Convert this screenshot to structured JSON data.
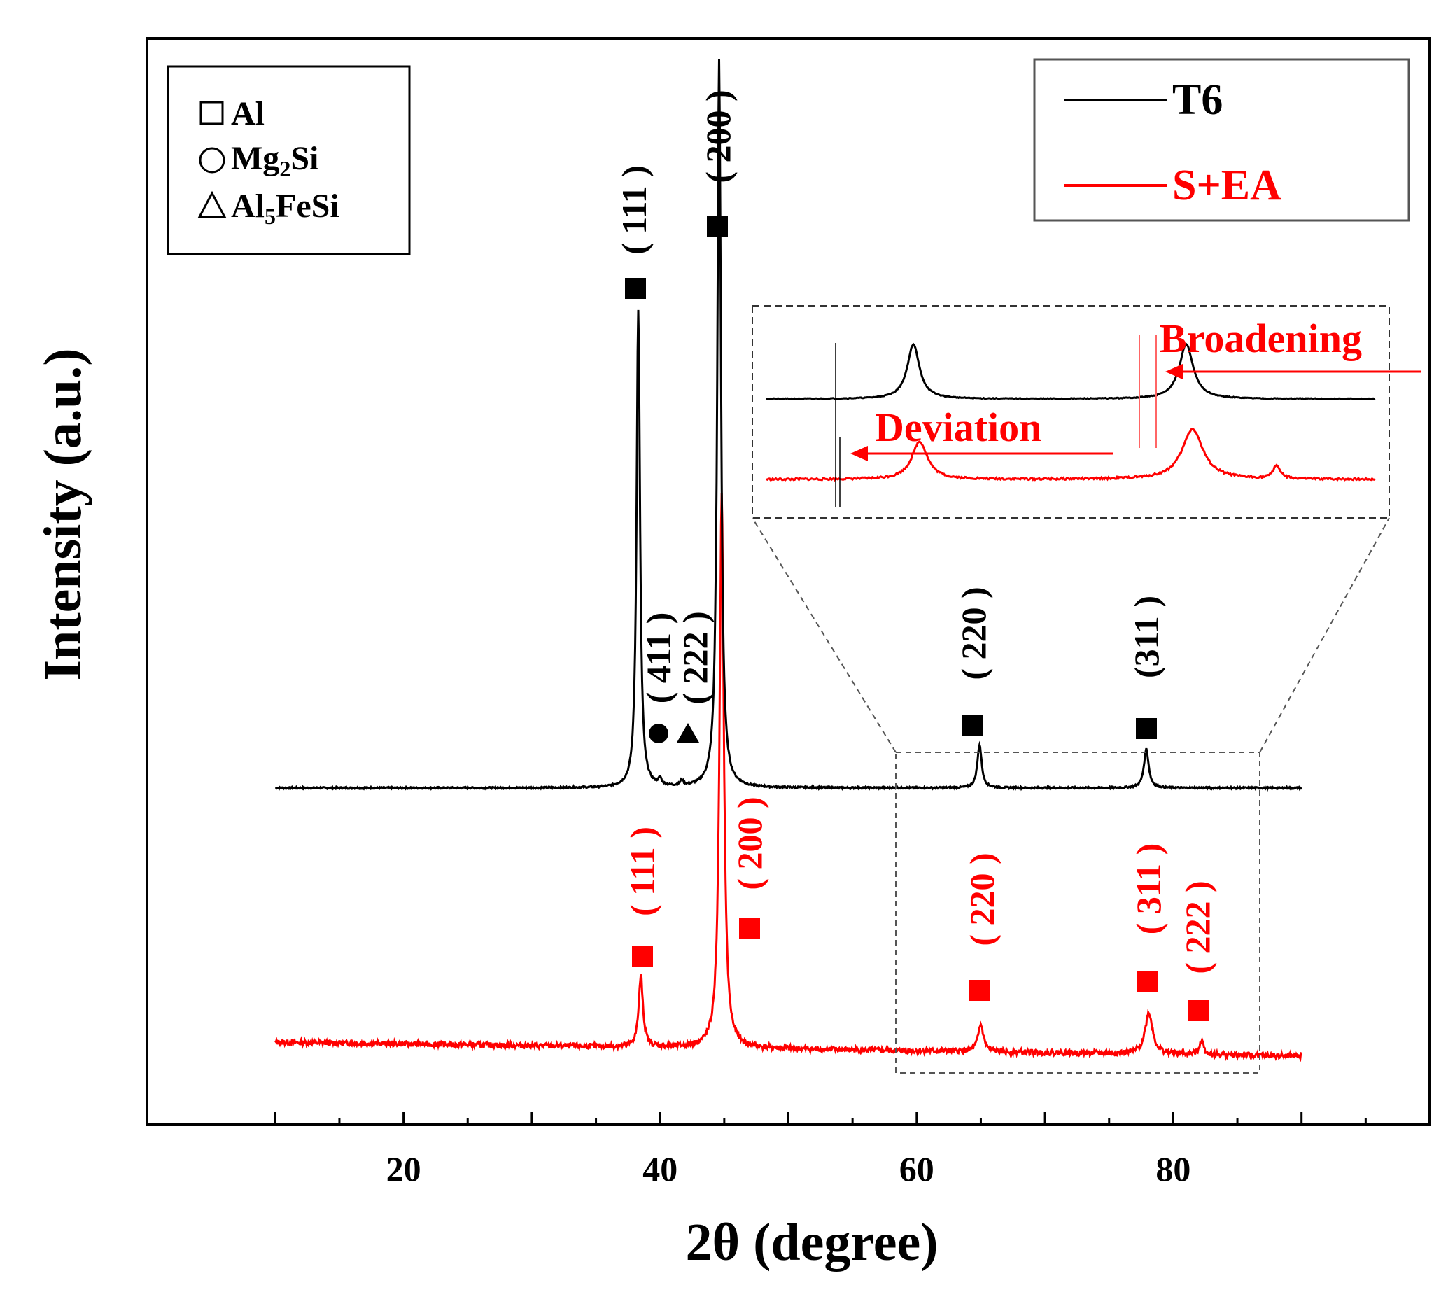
{
  "chart_data": {
    "type": "line",
    "title": "",
    "xlabel": "2θ (degree)",
    "ylabel": "Intensity (a.u.)",
    "xlim": [
      0,
      100
    ],
    "ylim": [
      0,
      100
    ],
    "xticks": [
      20,
      40,
      60,
      80
    ],
    "tick_labels": [
      "20",
      "40",
      "60",
      "80"
    ],
    "grid": false,
    "series": [
      {
        "name": "T6",
        "color": "#000000",
        "baseline": 31,
        "noise": 0.08,
        "peaks": [
          {
            "x": 38.3,
            "h": 44,
            "w": 0.16
          },
          {
            "x": 40.0,
            "h": 0.6,
            "w": 0.15
          },
          {
            "x": 41.7,
            "h": 0.5,
            "w": 0.15
          },
          {
            "x": 44.6,
            "h": 67,
            "w": 0.17
          },
          {
            "x": 64.9,
            "h": 4.0,
            "w": 0.2
          },
          {
            "x": 77.9,
            "h": 3.6,
            "w": 0.22
          }
        ]
      },
      {
        "name": "S+EA",
        "color": "#ff0000",
        "baseline": 7.6,
        "slope": -0.016,
        "noise": 0.25,
        "peaks": [
          {
            "x": 38.5,
            "h": 6.5,
            "w": 0.2
          },
          {
            "x": 44.8,
            "h": 51,
            "w": 0.2
          },
          {
            "x": 65.0,
            "h": 2.5,
            "w": 0.25
          },
          {
            "x": 78.1,
            "h": 3.8,
            "w": 0.35
          },
          {
            "x": 82.2,
            "h": 1.3,
            "w": 0.2
          }
        ]
      }
    ],
    "legend": {
      "position": "top-right",
      "entries": [
        {
          "label": "T6",
          "color": "#000000"
        },
        {
          "label": "S+EA",
          "color": "#ff0000"
        }
      ]
    },
    "phase_legend": {
      "position": "top-left",
      "entries": [
        {
          "symbol": "open-square",
          "parts": [
            "Al"
          ]
        },
        {
          "symbol": "open-circle",
          "parts": [
            "Mg",
            "2",
            "Si"
          ]
        },
        {
          "symbol": "open-triangle",
          "parts": [
            "Al",
            "5",
            "FeSi"
          ]
        }
      ]
    },
    "peak_labels": {
      "t6": [
        {
          "label": "( 111 )",
          "phase": "Al"
        },
        {
          "label": "( 200 )",
          "phase": "Al"
        },
        {
          "label": "( 411 )",
          "phase": "Mg2Si"
        },
        {
          "label": "( 222 )",
          "phase": "Al5FeSi"
        },
        {
          "label": "( 220 )",
          "phase": "Al"
        },
        {
          "label": "(311 )",
          "phase": "Al"
        }
      ],
      "sea": [
        {
          "label": "( 111 )",
          "phase": "Al"
        },
        {
          "label": "( 200 )",
          "phase": "Al"
        },
        {
          "label": "( 220 )",
          "phase": "Al"
        },
        {
          "label": "( 311 )",
          "phase": "Al"
        },
        {
          "label": "( 222 )",
          "phase": "Al"
        }
      ]
    },
    "annotations": {
      "broadening": "Broadening",
      "deviation": "Deviation"
    },
    "inset": {
      "description_range_x": [
        58,
        87
      ],
      "t6_peaks": [
        {
          "x": 65.0,
          "h": 6.5,
          "w": 0.35
        },
        {
          "x": 78.0,
          "h": 6.5,
          "w": 0.4
        }
      ],
      "sea_peaks": [
        {
          "x": 65.3,
          "h": 4.5,
          "w": 0.45
        },
        {
          "x": 78.3,
          "h": 6.0,
          "w": 0.6
        },
        {
          "x": 82.3,
          "h": 1.6,
          "w": 0.2
        }
      ]
    }
  }
}
